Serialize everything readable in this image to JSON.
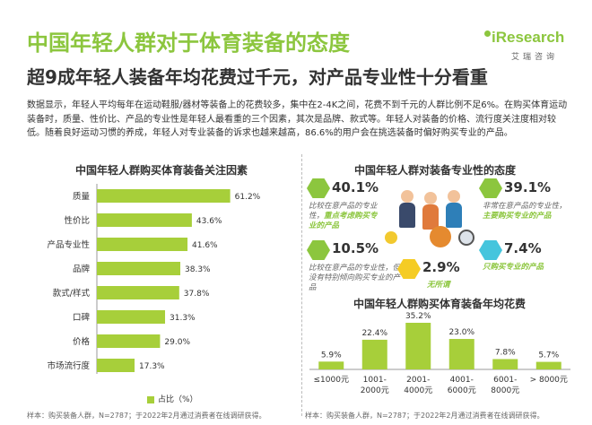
{
  "header": {
    "title": "中国年轻人群对于体育装备的态度",
    "subtitle": "超9成年轻人装备年均花费过千元，对产品专业性十分看重",
    "logo_word": "iResearch",
    "logo_sub": "艾瑞咨询"
  },
  "body_text": "数据显示，年轻人平均每年在运动鞋服/器材等装备上的花费较多，集中在2-4K之间，花费不到千元的人群比例不足6%。在购买体育运动装备时，质量、性价比、产品的专业性是年轻人最看重的三个因素，其次是品牌、款式等。年轻人对装备的价格、流行度关注度相对较低。随着良好运动习惯的养成，年轻人对专业装备的诉求也越来越高，86.6%的用户会在挑选装备时偏好购买专业的产品。",
  "colors": {
    "accent": "#8cc63e",
    "bar": "#a7cf3a",
    "hex_green": "#8cc63e",
    "hex_cyan": "#45c5dd",
    "hex_yellow": "#f5cc24"
  },
  "chart_data": [
    {
      "type": "bar",
      "orientation": "horizontal",
      "title": "中国年轻人群购买体育装备关注因素",
      "categories": [
        "质量",
        "性价比",
        "产品专业性",
        "品牌",
        "款式/样式",
        "口碑",
        "价格",
        "市场流行度"
      ],
      "values": [
        61.2,
        43.6,
        41.6,
        38.3,
        37.8,
        31.3,
        29.0,
        17.3
      ],
      "value_labels": [
        "61.2%",
        "43.6%",
        "41.6%",
        "38.3%",
        "37.8%",
        "31.3%",
        "29.0%",
        "17.3%"
      ],
      "legend": "占比（%）",
      "xlim": [
        0,
        70
      ],
      "source": "样本：购买装备人群，N=2787；于2022年2月通过消费者在线调研获得。"
    },
    {
      "type": "table",
      "title": "中国年轻人群对装备专业性的态度",
      "items": [
        {
          "value": "40.1%",
          "desc_plain": "比较在意产品的专业性，",
          "desc_highlight": "重点考虑购买专业的产品",
          "icon": "hexagon-green-icon"
        },
        {
          "value": "39.1%",
          "desc_plain": "非常在意产品的专业性，",
          "desc_highlight": "主要购买专业的产品",
          "icon": "hexagon-green-icon"
        },
        {
          "value": "10.5%",
          "desc_plain": "比较在意产品的专业性，但没有特别倾向购买专业的产品",
          "desc_highlight": "",
          "icon": "hexagon-green-icon"
        },
        {
          "value": "7.4%",
          "desc_plain": "",
          "desc_highlight": "只购买专业的产品",
          "icon": "hexagon-cyan-icon"
        },
        {
          "value": "2.9%",
          "desc_plain": "",
          "desc_highlight": "无所谓",
          "icon": "hexagon-yellow-icon"
        }
      ]
    },
    {
      "type": "bar",
      "orientation": "vertical",
      "title": "中国年轻人群购买体育装备年均花费",
      "categories": [
        "≤1000元",
        "1001-2000元",
        "2001-4000元",
        "4001-6000元",
        "6001-8000元",
        "> 8000元"
      ],
      "values": [
        5.9,
        22.4,
        35.2,
        23.0,
        7.8,
        5.7
      ],
      "value_labels": [
        "5.9%",
        "22.4%",
        "35.2%",
        "23.0%",
        "7.8%",
        "5.7%"
      ],
      "ylim": [
        0,
        40
      ],
      "source": "样本：购买装备人群，N=2787；于2022年2月通过消费者在线调研获得。"
    }
  ]
}
